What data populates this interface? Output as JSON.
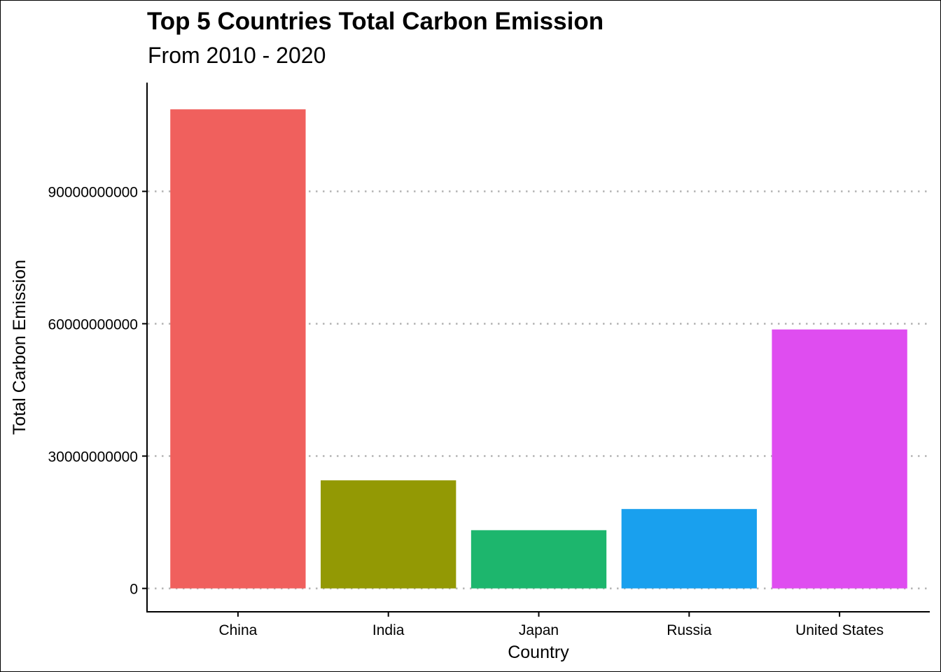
{
  "chart_data": {
    "type": "bar",
    "title": "Top 5 Countries Total Carbon Emission",
    "subtitle": "From 2010 - 2020",
    "xlabel": "Country",
    "ylabel": "Total Carbon Emission",
    "categories": [
      "China",
      "India",
      "Japan",
      "Russia",
      "United States"
    ],
    "values": [
      108600000000,
      24500000000,
      13200000000,
      18000000000,
      58700000000
    ],
    "colors": [
      "#F0605D",
      "#939904",
      "#1DB66D",
      "#19A0EE",
      "#DF4DF0"
    ],
    "ylim": [
      -5300000000,
      114500000000
    ],
    "yticks": [
      0,
      30000000000,
      60000000000,
      90000000000
    ],
    "ytick_labels": [
      "0",
      "30000000000",
      "60000000000",
      "90000000000"
    ],
    "grid": "horizontal-dotted",
    "legend": "none"
  }
}
